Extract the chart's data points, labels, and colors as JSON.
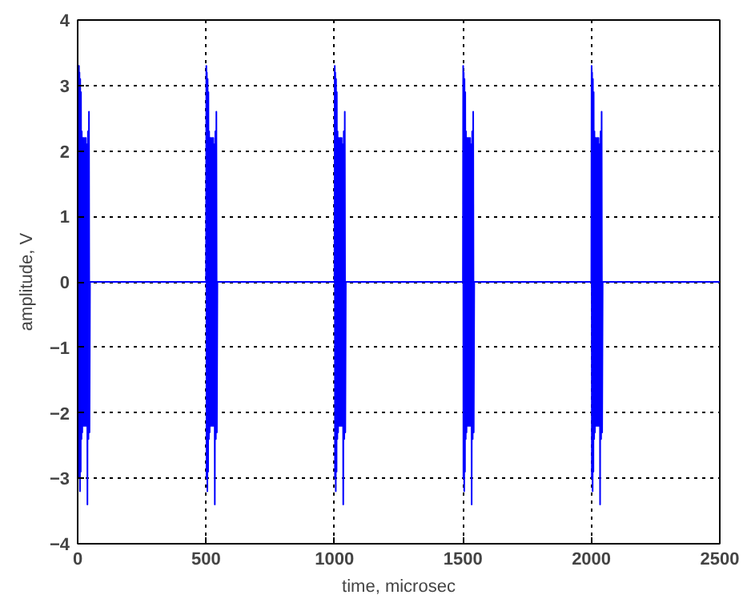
{
  "chart_data": {
    "type": "line",
    "xlabel": "time, microsec",
    "ylabel": "amplitude, V",
    "xlim": [
      0,
      2500
    ],
    "xticks": [
      0,
      500,
      1000,
      1500,
      2000,
      2500
    ],
    "ylim": [
      -4,
      4
    ],
    "yticks": [
      -4,
      -3,
      -2,
      -1,
      0,
      1,
      2,
      3,
      4
    ],
    "grid": true,
    "line_style": "solid",
    "marker": "none",
    "series": [
      {
        "color": "#0000ff",
        "x": [
          0,
          5,
          6,
          7,
          9,
          10,
          12,
          13,
          15,
          16,
          18,
          20,
          22,
          24,
          26,
          28,
          30,
          32,
          34,
          36,
          38,
          40,
          42,
          44,
          46,
          48,
          500,
          501,
          502,
          503,
          505,
          506,
          508,
          509,
          511,
          512,
          514,
          516,
          518,
          520,
          522,
          524,
          526,
          528,
          530,
          532,
          534,
          536,
          538,
          540,
          542,
          544,
          1000,
          1001,
          1002,
          1003,
          1005,
          1006,
          1008,
          1009,
          1011,
          1012,
          1014,
          1016,
          1018,
          1020,
          1022,
          1024,
          1026,
          1028,
          1030,
          1032,
          1034,
          1036,
          1038,
          1040,
          1042,
          1044,
          1500,
          1501,
          1502,
          1503,
          1505,
          1506,
          1508,
          1509,
          1511,
          1512,
          1514,
          1516,
          1518,
          1520,
          1522,
          1524,
          1526,
          1528,
          1530,
          1532,
          1534,
          1536,
          1538,
          1540,
          1542,
          1544,
          2000,
          2001,
          2002,
          2003,
          2005,
          2006,
          2008,
          2009,
          2011,
          2012,
          2014,
          2016,
          2018,
          2020,
          2022,
          2024,
          2026,
          2028,
          2030,
          2032,
          2034,
          2036,
          2038,
          2040,
          2042,
          2044,
          2500
        ],
        "values": [
          0,
          3.3,
          -3.0,
          3.2,
          -3.2,
          3.1,
          -2.9,
          2.9,
          -2.4,
          2.3,
          -2.3,
          2.2,
          -2.2,
          2.2,
          -2.2,
          2.2,
          -2.2,
          2.2,
          -2.2,
          2.1,
          -3.4,
          2.3,
          -2.4,
          2.6,
          -2.3,
          0,
          0,
          3.3,
          -3.0,
          3.2,
          -3.2,
          3.1,
          -2.9,
          2.9,
          -2.4,
          2.3,
          -2.3,
          2.2,
          -2.2,
          2.2,
          -2.2,
          2.2,
          -2.2,
          2.2,
          -2.2,
          2.1,
          -3.4,
          2.3,
          -2.4,
          2.6,
          -2.3,
          0,
          0,
          3.3,
          -3.0,
          3.2,
          -3.2,
          3.1,
          -2.9,
          2.9,
          -2.4,
          2.3,
          -2.3,
          2.2,
          -2.2,
          2.2,
          -2.2,
          2.2,
          -2.2,
          2.2,
          -2.2,
          2.1,
          -3.4,
          2.3,
          -2.4,
          2.6,
          -2.3,
          0,
          0,
          3.3,
          -3.0,
          3.2,
          -3.2,
          3.1,
          -2.9,
          2.9,
          -2.4,
          2.3,
          -2.3,
          2.2,
          -2.2,
          2.2,
          -2.2,
          2.2,
          -2.2,
          2.2,
          -2.2,
          2.1,
          -3.4,
          2.3,
          -2.4,
          2.6,
          -2.3,
          0,
          0,
          3.3,
          -3.0,
          3.2,
          -3.2,
          3.1,
          -2.9,
          2.9,
          -2.4,
          2.3,
          -2.3,
          2.2,
          -2.2,
          2.2,
          -2.2,
          2.2,
          -2.2,
          2.2,
          -2.2,
          2.1,
          -3.4,
          2.3,
          -2.4,
          2.6,
          -2.3,
          0,
          0
        ]
      }
    ]
  }
}
